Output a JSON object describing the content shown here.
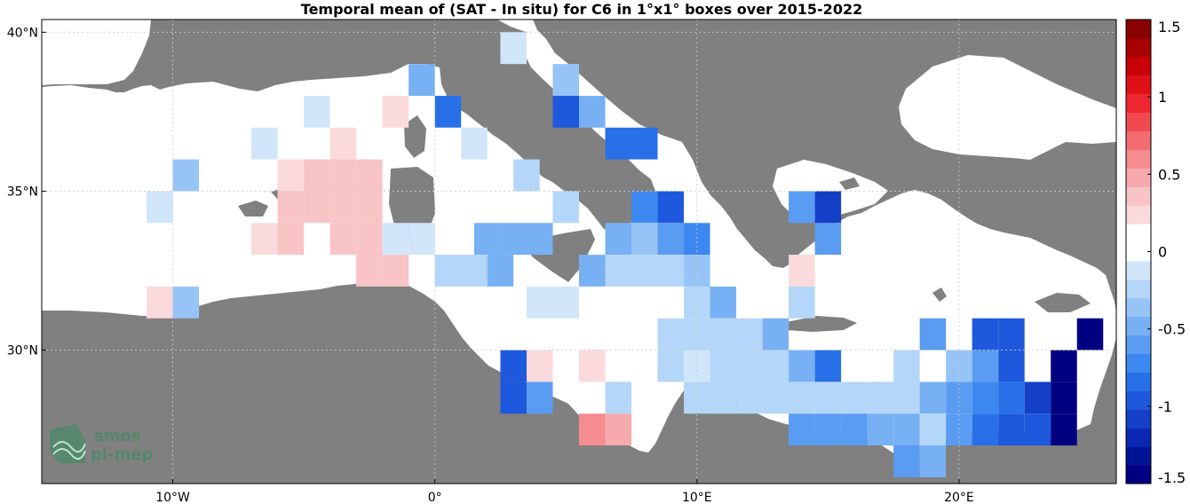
{
  "title": "Temporal mean of (SAT - In situ) for C6 in 1°x1° boxes over 2015-2022",
  "colors": {
    "land": "#808080",
    "sea": "#ffffff",
    "grid": "#cccccc"
  },
  "axes": {
    "lat_ticks": [
      {
        "value": 40,
        "label": "40°N"
      },
      {
        "value": 35,
        "label": "35°N"
      },
      {
        "value": 30,
        "label": "30°N"
      }
    ],
    "lon_ticks": [
      {
        "value": -10,
        "label": "10°W"
      },
      {
        "value": 0,
        "label": "0°"
      },
      {
        "value": 10,
        "label": "10°E"
      },
      {
        "value": 20,
        "label": "20°E"
      }
    ],
    "lon_range": [
      -15,
      26
    ],
    "lat_range": [
      25.8,
      40.4
    ]
  },
  "colorbar": {
    "min": -1.5,
    "max": 1.5,
    "ticks": [
      {
        "value": 1.5,
        "label": "1.5"
      },
      {
        "value": 1,
        "label": "1"
      },
      {
        "value": 0.5,
        "label": "0.5"
      },
      {
        "value": 0,
        "label": "0"
      },
      {
        "value": -0.5,
        "label": "-0.5"
      },
      {
        "value": -1,
        "label": "-1"
      },
      {
        "value": -1.5,
        "label": "-1.5"
      }
    ],
    "colors": [
      "#000080",
      "#001496",
      "#0a28b4",
      "#1440c8",
      "#1e58dc",
      "#2870e8",
      "#3c88f0",
      "#5a9cf2",
      "#78b0f4",
      "#96c4f6",
      "#b4d6f8",
      "#d2e6fa",
      "#ffffff",
      "#ffffff",
      "#fadadc",
      "#f8c4c6",
      "#f6aaae",
      "#f48c90",
      "#f26c70",
      "#f04a50",
      "#ee2830",
      "#e01018",
      "#c80008",
      "#a80000",
      "#880000"
    ]
  },
  "logo": {
    "line1": "smos",
    "line2": "pi-mep"
  },
  "chart_data": {
    "type": "heatmap",
    "title": "Temporal mean of (SAT - In situ) for C6 in 1°x1° boxes over 2015-2022",
    "variable": "SAT - In situ",
    "cells": [
      {
        "lon": 3,
        "lat": 39.5,
        "value": -0.15
      },
      {
        "lon": -0.5,
        "lat": 38.5,
        "value": -0.5
      },
      {
        "lon": 5,
        "lat": 38.5,
        "value": -0.4
      },
      {
        "lon": -4.5,
        "lat": 37.5,
        "value": -0.15
      },
      {
        "lon": -1.5,
        "lat": 37.5,
        "value": 0.2
      },
      {
        "lon": 0.5,
        "lat": 37.5,
        "value": -0.85
      },
      {
        "lon": 5,
        "lat": 37.5,
        "value": -1.0
      },
      {
        "lon": 6,
        "lat": 37.5,
        "value": -0.5
      },
      {
        "lon": -6.5,
        "lat": 36.5,
        "value": -0.15
      },
      {
        "lon": -3.5,
        "lat": 36.5,
        "value": 0.2
      },
      {
        "lon": 1.5,
        "lat": 36.5,
        "value": -0.15
      },
      {
        "lon": 7,
        "lat": 36.5,
        "value": -0.85
      },
      {
        "lon": 8,
        "lat": 36.5,
        "value": -0.85
      },
      {
        "lon": -9.5,
        "lat": 35.5,
        "value": -0.4
      },
      {
        "lon": -5.5,
        "lat": 35.5,
        "value": 0.2
      },
      {
        "lon": -4.5,
        "lat": 35.5,
        "value": 0.3
      },
      {
        "lon": -3.5,
        "lat": 35.5,
        "value": 0.3
      },
      {
        "lon": -2.5,
        "lat": 35.5,
        "value": 0.3
      },
      {
        "lon": 3.5,
        "lat": 35.5,
        "value": -0.3
      },
      {
        "lon": -10.5,
        "lat": 34.5,
        "value": -0.15
      },
      {
        "lon": -5.5,
        "lat": 34.5,
        "value": 0.3
      },
      {
        "lon": -4.5,
        "lat": 34.5,
        "value": 0.3
      },
      {
        "lon": -3.5,
        "lat": 34.5,
        "value": 0.3
      },
      {
        "lon": -2.5,
        "lat": 34.5,
        "value": 0.3
      },
      {
        "lon": 5,
        "lat": 34.5,
        "value": -0.3
      },
      {
        "lon": 8,
        "lat": 34.5,
        "value": -0.75
      },
      {
        "lon": 9,
        "lat": 34.5,
        "value": -1.0
      },
      {
        "lon": 14,
        "lat": 34.5,
        "value": -0.6
      },
      {
        "lon": 15,
        "lat": 34.5,
        "value": -1.05
      },
      {
        "lon": -6.5,
        "lat": 33.5,
        "value": 0.2
      },
      {
        "lon": -5.5,
        "lat": 33.5,
        "value": 0.3
      },
      {
        "lon": -3.5,
        "lat": 33.5,
        "value": 0.3
      },
      {
        "lon": -2.5,
        "lat": 33.5,
        "value": 0.3
      },
      {
        "lon": -1.5,
        "lat": 33.5,
        "value": -0.15
      },
      {
        "lon": -0.5,
        "lat": 33.5,
        "value": -0.15
      },
      {
        "lon": 2,
        "lat": 33.5,
        "value": -0.45
      },
      {
        "lon": 3,
        "lat": 33.5,
        "value": -0.45
      },
      {
        "lon": 4,
        "lat": 33.5,
        "value": -0.45
      },
      {
        "lon": 7,
        "lat": 33.5,
        "value": -0.5
      },
      {
        "lon": 8,
        "lat": 33.5,
        "value": -0.35
      },
      {
        "lon": 9,
        "lat": 33.5,
        "value": -0.55
      },
      {
        "lon": 10,
        "lat": 33.5,
        "value": -0.7
      },
      {
        "lon": 15,
        "lat": 33.5,
        "value": -0.6
      },
      {
        "lon": -2.5,
        "lat": 32.5,
        "value": 0.3
      },
      {
        "lon": -1.5,
        "lat": 32.5,
        "value": 0.35
      },
      {
        "lon": 0.5,
        "lat": 32.5,
        "value": -0.3
      },
      {
        "lon": 1.5,
        "lat": 32.5,
        "value": -0.2
      },
      {
        "lon": 2.5,
        "lat": 32.5,
        "value": -0.45
      },
      {
        "lon": 6,
        "lat": 32.5,
        "value": -0.45
      },
      {
        "lon": 7,
        "lat": 32.5,
        "value": -0.2
      },
      {
        "lon": 8,
        "lat": 32.5,
        "value": -0.2
      },
      {
        "lon": 9,
        "lat": 32.5,
        "value": -0.2
      },
      {
        "lon": 10,
        "lat": 32.5,
        "value": -0.35
      },
      {
        "lon": 14,
        "lat": 32.5,
        "value": 0.2
      },
      {
        "lon": -10.5,
        "lat": 31.5,
        "value": 0.25
      },
      {
        "lon": -9.5,
        "lat": 31.5,
        "value": -0.35
      },
      {
        "lon": 4,
        "lat": 31.5,
        "value": -0.15
      },
      {
        "lon": 5,
        "lat": 31.5,
        "value": -0.15
      },
      {
        "lon": 10,
        "lat": 31.5,
        "value": -0.2
      },
      {
        "lon": 11,
        "lat": 31.5,
        "value": -0.45
      },
      {
        "lon": 14,
        "lat": 31.5,
        "value": -0.2
      },
      {
        "lon": 9,
        "lat": 30.5,
        "value": -0.2
      },
      {
        "lon": 10,
        "lat": 30.5,
        "value": -0.3
      },
      {
        "lon": 11,
        "lat": 30.5,
        "value": -0.3
      },
      {
        "lon": 12,
        "lat": 30.5,
        "value": -0.2
      },
      {
        "lon": 13,
        "lat": 30.5,
        "value": -0.45
      },
      {
        "lon": 19,
        "lat": 30.5,
        "value": -0.6
      },
      {
        "lon": 21,
        "lat": 30.5,
        "value": -0.95
      },
      {
        "lon": 22,
        "lat": 30.5,
        "value": -0.95
      },
      {
        "lon": 25,
        "lat": 30.5,
        "value": -1.5
      },
      {
        "lon": 3,
        "lat": 29.5,
        "value": -1.0
      },
      {
        "lon": 4,
        "lat": 29.5,
        "value": 0.2
      },
      {
        "lon": 6,
        "lat": 29.5,
        "value": 0.2
      },
      {
        "lon": 9,
        "lat": 29.5,
        "value": -0.3
      },
      {
        "lon": 10,
        "lat": 29.5,
        "value": -0.15
      },
      {
        "lon": 11,
        "lat": 29.5,
        "value": -0.3
      },
      {
        "lon": 12,
        "lat": 29.5,
        "value": -0.2
      },
      {
        "lon": 13,
        "lat": 29.5,
        "value": -0.2
      },
      {
        "lon": 14,
        "lat": 29.5,
        "value": -0.45
      },
      {
        "lon": 15,
        "lat": 29.5,
        "value": -0.8
      },
      {
        "lon": 18,
        "lat": 29.5,
        "value": -0.2
      },
      {
        "lon": 20,
        "lat": 29.5,
        "value": -0.4
      },
      {
        "lon": 21,
        "lat": 29.5,
        "value": -0.65
      },
      {
        "lon": 22,
        "lat": 29.5,
        "value": -1.0
      },
      {
        "lon": 24,
        "lat": 29.5,
        "value": -1.5
      },
      {
        "lon": 3,
        "lat": 28.5,
        "value": -1.0
      },
      {
        "lon": 4,
        "lat": 28.5,
        "value": -0.65
      },
      {
        "lon": 7,
        "lat": 28.5,
        "value": -0.3
      },
      {
        "lon": 10,
        "lat": 28.5,
        "value": -0.3
      },
      {
        "lon": 11,
        "lat": 28.5,
        "value": -0.3
      },
      {
        "lon": 12,
        "lat": 28.5,
        "value": -0.3
      },
      {
        "lon": 13,
        "lat": 28.5,
        "value": -0.3
      },
      {
        "lon": 14,
        "lat": 28.5,
        "value": -0.2
      },
      {
        "lon": 15,
        "lat": 28.5,
        "value": -0.2
      },
      {
        "lon": 16,
        "lat": 28.5,
        "value": -0.3
      },
      {
        "lon": 17,
        "lat": 28.5,
        "value": -0.3
      },
      {
        "lon": 18,
        "lat": 28.5,
        "value": -0.3
      },
      {
        "lon": 19,
        "lat": 28.5,
        "value": -0.45
      },
      {
        "lon": 20,
        "lat": 28.5,
        "value": -0.6
      },
      {
        "lon": 21,
        "lat": 28.5,
        "value": -0.7
      },
      {
        "lon": 22,
        "lat": 28.5,
        "value": -0.85
      },
      {
        "lon": 23,
        "lat": 28.5,
        "value": -1.05
      },
      {
        "lon": 24,
        "lat": 28.5,
        "value": -1.5
      },
      {
        "lon": 6,
        "lat": 27.5,
        "value": 0.6
      },
      {
        "lon": 7,
        "lat": 27.5,
        "value": 0.45
      },
      {
        "lon": 14,
        "lat": 27.5,
        "value": -0.6
      },
      {
        "lon": 15,
        "lat": 27.5,
        "value": -0.6
      },
      {
        "lon": 16,
        "lat": 27.5,
        "value": -0.55
      },
      {
        "lon": 17,
        "lat": 27.5,
        "value": -0.45
      },
      {
        "lon": 18,
        "lat": 27.5,
        "value": -0.45
      },
      {
        "lon": 19,
        "lat": 27.5,
        "value": -0.3
      },
      {
        "lon": 20,
        "lat": 27.5,
        "value": -0.65
      },
      {
        "lon": 21,
        "lat": 27.5,
        "value": -0.85
      },
      {
        "lon": 22,
        "lat": 27.5,
        "value": -0.95
      },
      {
        "lon": 23,
        "lat": 27.5,
        "value": -0.95
      },
      {
        "lon": 24,
        "lat": 27.5,
        "value": -1.5
      },
      {
        "lon": 18,
        "lat": 26.5,
        "value": -0.6
      },
      {
        "lon": 19,
        "lat": 26.5,
        "value": -0.45
      }
    ]
  }
}
